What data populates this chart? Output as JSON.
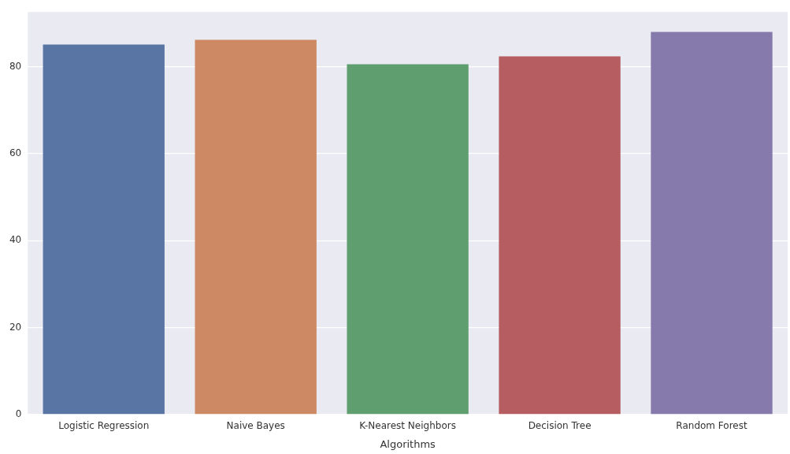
{
  "chart_data": {
    "type": "bar",
    "xlabel": "Algorithms",
    "categories": [
      "Logistic Regression",
      "Naive Bayes",
      "K-Nearest Neighbors",
      "Decision Tree",
      "Random Forest"
    ],
    "values": [
      85.1,
      86.2,
      80.6,
      82.4,
      88.0
    ],
    "colors": [
      "#5975a4",
      "#cc8963",
      "#5f9e6e",
      "#b55d60",
      "#857aab"
    ],
    "ylim": [
      0,
      92.6
    ],
    "yticks": [
      0,
      20,
      40,
      60,
      80
    ],
    "grid": "y",
    "legend": false
  }
}
